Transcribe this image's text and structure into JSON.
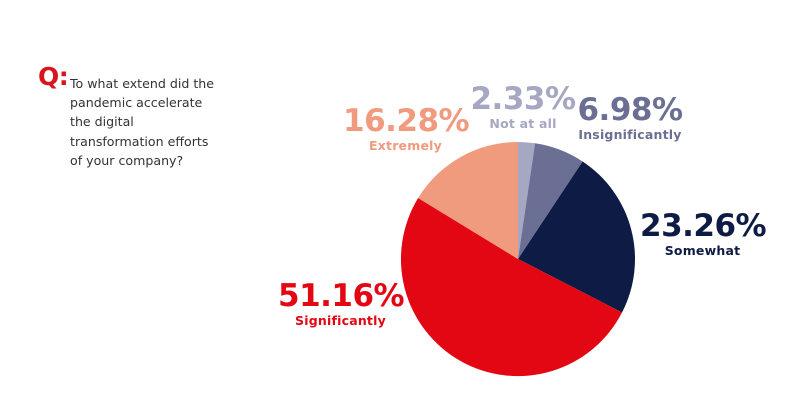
{
  "question": {
    "marker": "Q:",
    "lines": [
      "To what extend did the",
      "pandemic accelerate",
      "the digital",
      "transformation efforts",
      "of your company?"
    ]
  },
  "colors": {
    "marker": "#d9141c",
    "question_text": "#333333"
  },
  "chart_data": {
    "type": "pie",
    "title": "To what extend did the pandemic accelerate the digital transformation efforts of your company?",
    "start_angle_deg": 0,
    "direction": "clockwise",
    "slices": [
      {
        "label": "Not at all",
        "value": 2.33,
        "display": "2.33%",
        "color": "#a6a8c3"
      },
      {
        "label": "Insignificantly",
        "value": 6.98,
        "display": "6.98%",
        "color": "#6b6f94"
      },
      {
        "label": "Somewhat",
        "value": 23.26,
        "display": "23.26%",
        "color": "#0e1b45"
      },
      {
        "label": "Significantly",
        "value": 51.16,
        "display": "51.16%",
        "color": "#e30613"
      },
      {
        "label": "Extremely",
        "value": 16.28,
        "display": "16.28%",
        "color": "#f09a7e"
      }
    ]
  }
}
